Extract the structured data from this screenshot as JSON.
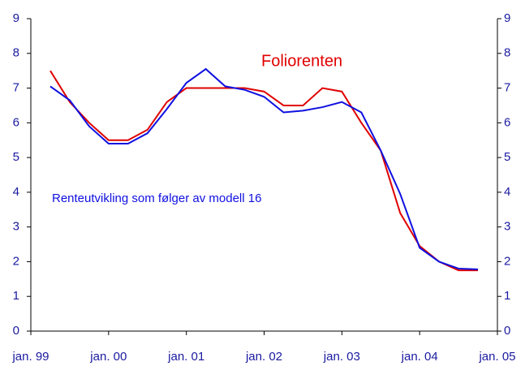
{
  "chart_data": {
    "type": "line",
    "x": [
      1999.25,
      1999.5,
      1999.75,
      2000.0,
      2000.25,
      2000.5,
      2000.75,
      2001.0,
      2001.25,
      2001.5,
      2001.75,
      2002.0,
      2002.25,
      2002.5,
      2002.75,
      2003.0,
      2003.25,
      2003.5,
      2003.75,
      2004.0,
      2004.25,
      2004.5,
      2004.75
    ],
    "series": [
      {
        "name": "Foliorenten",
        "color": "#e00000",
        "values": [
          7.5,
          6.6,
          6.0,
          5.5,
          5.5,
          5.8,
          6.6,
          7.0,
          7.0,
          7.0,
          7.0,
          6.9,
          6.5,
          6.5,
          7.0,
          6.9,
          6.0,
          5.2,
          3.4,
          2.45,
          2.0,
          1.75,
          1.75
        ]
      },
      {
        "name": "Renteutvikling som følger av  modell 16",
        "color": "#1010e0",
        "values": [
          7.05,
          6.65,
          5.9,
          5.4,
          5.4,
          5.7,
          6.4,
          7.15,
          7.55,
          7.05,
          6.95,
          6.75,
          6.3,
          6.35,
          6.45,
          6.6,
          6.3,
          5.2,
          3.95,
          2.4,
          2.0,
          1.8,
          1.78
        ]
      }
    ],
    "xlim": [
      1999,
      2005
    ],
    "xticks": [
      {
        "value": 1999,
        "label": "jan. 99"
      },
      {
        "value": 2000,
        "label": "jan. 00"
      },
      {
        "value": 2001,
        "label": "jan. 01"
      },
      {
        "value": 2002,
        "label": "jan. 02"
      },
      {
        "value": 2003,
        "label": "jan. 03"
      },
      {
        "value": 2004,
        "label": "jan. 04"
      },
      {
        "value": 2005,
        "label": "jan. 05"
      }
    ],
    "ylim": [
      0,
      9
    ],
    "yticks": [
      0,
      1,
      2,
      3,
      4,
      5,
      6,
      7,
      8,
      9
    ],
    "y2lim": [
      0,
      9
    ],
    "y2ticks": [
      0,
      1,
      2,
      3,
      4,
      5,
      6,
      7,
      8,
      9
    ],
    "grid": false
  }
}
